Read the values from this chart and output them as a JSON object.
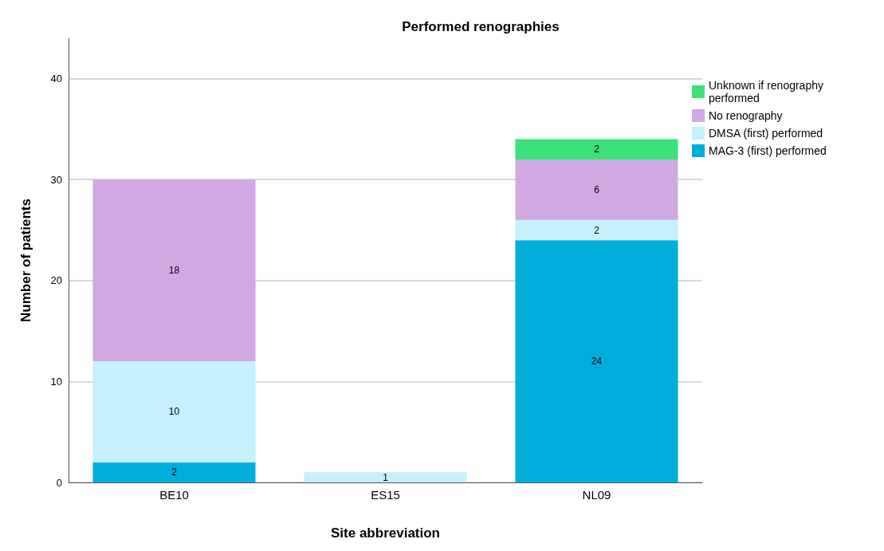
{
  "chart_data": {
    "type": "bar",
    "title": "Performed renographies",
    "xlabel": "Site abbreviation",
    "ylabel": "Number of patients",
    "categories": [
      "BE10",
      "ES15",
      "NL09"
    ],
    "stacked": true,
    "data_labels": true,
    "grid": "y",
    "legend": "top right",
    "ylim": [
      0,
      44
    ],
    "yticks": [
      0,
      10,
      20,
      30,
      40
    ],
    "series": [
      {
        "name": "MAG-3 (first) performed",
        "color": "#00aedb",
        "values": [
          2,
          null,
          24
        ]
      },
      {
        "name": "DMSA (first) performed",
        "color": "#c5f0fc",
        "values": [
          10,
          1,
          2
        ]
      },
      {
        "name": "No renography",
        "color": "#d0a9e2",
        "values": [
          18,
          null,
          6
        ]
      },
      {
        "name": "Unknown if renography performed",
        "color": "#3de17a",
        "values": [
          null,
          null,
          2
        ]
      }
    ]
  }
}
